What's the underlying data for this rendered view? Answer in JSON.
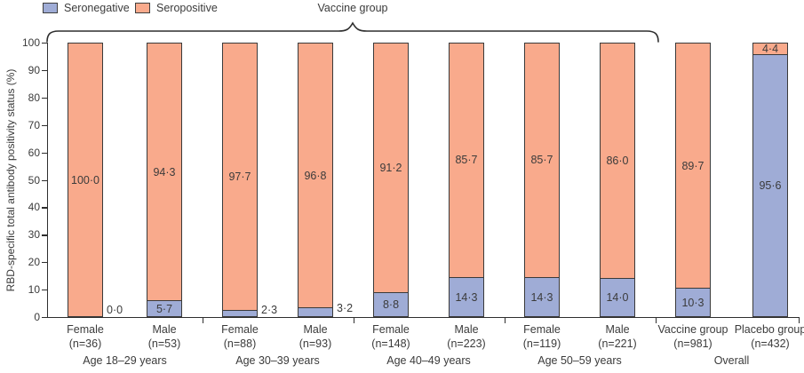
{
  "legend": [
    {
      "name": "seronegative",
      "label": "Seronegative",
      "color": "#9facd6"
    },
    {
      "name": "seropositive",
      "label": "Seropositive",
      "color": "#f9aa8c"
    }
  ],
  "brace_label": "Vaccine group",
  "ylabel": "RBD-specific total antibody positivity status (%)",
  "colors": {
    "seronegative": "#9facd6",
    "seropositive": "#f9aa8c",
    "border": "#3a3a3a",
    "axis": "#2e2e2e",
    "text": "#3b3b3b"
  },
  "chart_data": {
    "type": "bar",
    "stacked": true,
    "title": "",
    "xlabel": "",
    "ylabel": "RBD-specific total antibody positivity status (%)",
    "ylim": [
      0,
      100
    ],
    "yticks": [
      "0",
      "10",
      "20",
      "30",
      "40",
      "50",
      "60",
      "70",
      "80",
      "90",
      "100"
    ],
    "legend_position": "top-left",
    "grid": false,
    "categories": [
      "Female",
      "Male",
      "Female",
      "Male",
      "Female",
      "Male",
      "Female",
      "Male",
      "Vaccine group",
      "Placebo group"
    ],
    "bars": [
      {
        "label": "Female",
        "n": "(n=36)",
        "seronegative": 0.0,
        "seropositive": 100.0,
        "neg_label": "0·0",
        "pos_label": "100·0",
        "neg_placement": "outside"
      },
      {
        "label": "Male",
        "n": "(n=53)",
        "seronegative": 5.7,
        "seropositive": 94.3,
        "neg_label": "5·7",
        "pos_label": "94·3",
        "neg_placement": "inside"
      },
      {
        "label": "Female",
        "n": "(n=88)",
        "seronegative": 2.3,
        "seropositive": 97.7,
        "neg_label": "2·3",
        "pos_label": "97·7",
        "neg_placement": "outside"
      },
      {
        "label": "Male",
        "n": "(n=93)",
        "seronegative": 3.2,
        "seropositive": 96.8,
        "neg_label": "3·2",
        "pos_label": "96·8",
        "neg_placement": "outside"
      },
      {
        "label": "Female",
        "n": "(n=148)",
        "seronegative": 8.8,
        "seropositive": 91.2,
        "neg_label": "8·8",
        "pos_label": "91·2",
        "neg_placement": "inside"
      },
      {
        "label": "Male",
        "n": "(n=223)",
        "seronegative": 14.3,
        "seropositive": 85.7,
        "neg_label": "14·3",
        "pos_label": "85·7",
        "neg_placement": "inside"
      },
      {
        "label": "Female",
        "n": "(n=119)",
        "seronegative": 14.3,
        "seropositive": 85.7,
        "neg_label": "14·3",
        "pos_label": "85·7",
        "neg_placement": "inside"
      },
      {
        "label": "Male",
        "n": "(n=221)",
        "seronegative": 14.0,
        "seropositive": 86.0,
        "neg_label": "14·0",
        "pos_label": "86·0",
        "neg_placement": "inside"
      },
      {
        "label": "Vaccine group",
        "n": "(n=981)",
        "seronegative": 10.3,
        "seropositive": 89.7,
        "neg_label": "10·3",
        "pos_label": "89·7",
        "neg_placement": "inside"
      },
      {
        "label": "Placebo group",
        "n": "(n=432)",
        "seronegative": 95.6,
        "seropositive": 4.4,
        "neg_label": "95·6",
        "pos_label": "4·4",
        "neg_placement": "inside"
      }
    ],
    "groups": [
      {
        "label": "Age 18–29 years",
        "from": 0,
        "to": 1
      },
      {
        "label": "Age 30–39 years",
        "from": 2,
        "to": 3
      },
      {
        "label": "Age 40–49 years",
        "from": 4,
        "to": 5
      },
      {
        "label": "Age 50–59 years",
        "from": 6,
        "to": 7
      },
      {
        "label": "Overall",
        "from": 8,
        "to": 9
      }
    ],
    "series": [
      {
        "name": "Seronegative",
        "values": [
          0.0,
          5.7,
          2.3,
          3.2,
          8.8,
          14.3,
          14.3,
          14.0,
          10.3,
          95.6
        ]
      },
      {
        "name": "Seropositive",
        "values": [
          100.0,
          94.3,
          97.7,
          96.8,
          91.2,
          85.7,
          85.7,
          86.0,
          89.7,
          4.4
        ]
      }
    ]
  }
}
